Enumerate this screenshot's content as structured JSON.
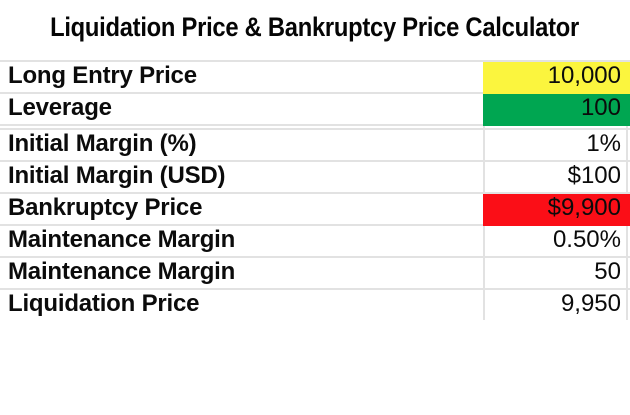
{
  "title": "Liquidation Price & Bankruptcy Price Calculator",
  "colors": {
    "yellow": "#FBF53E",
    "green": "#00A651",
    "red": "#FB0E17",
    "gridline": "#E2E2E2",
    "text": "#0B0B0B",
    "background": "#FFFFFF"
  },
  "table": {
    "rows": [
      {
        "label": "Long Entry Price",
        "value": "10,000",
        "fill": "yellow"
      },
      {
        "label": "Leverage",
        "value": "100",
        "fill": "green"
      },
      {
        "label": "",
        "value": "",
        "fill": ""
      },
      {
        "label": "Initial Margin (%)",
        "value": "1%",
        "fill": ""
      },
      {
        "label": "Initial Margin (USD)",
        "value": "$100",
        "fill": ""
      },
      {
        "label": "Bankruptcy Price",
        "value": "$9,900",
        "fill": "red"
      },
      {
        "label": "Maintenance Margin",
        "value": "0.50%",
        "fill": ""
      },
      {
        "label": "Maintenance Margin",
        "value": "50",
        "fill": ""
      },
      {
        "label": "Liquidation Price",
        "value": "9,950",
        "fill": ""
      }
    ]
  }
}
